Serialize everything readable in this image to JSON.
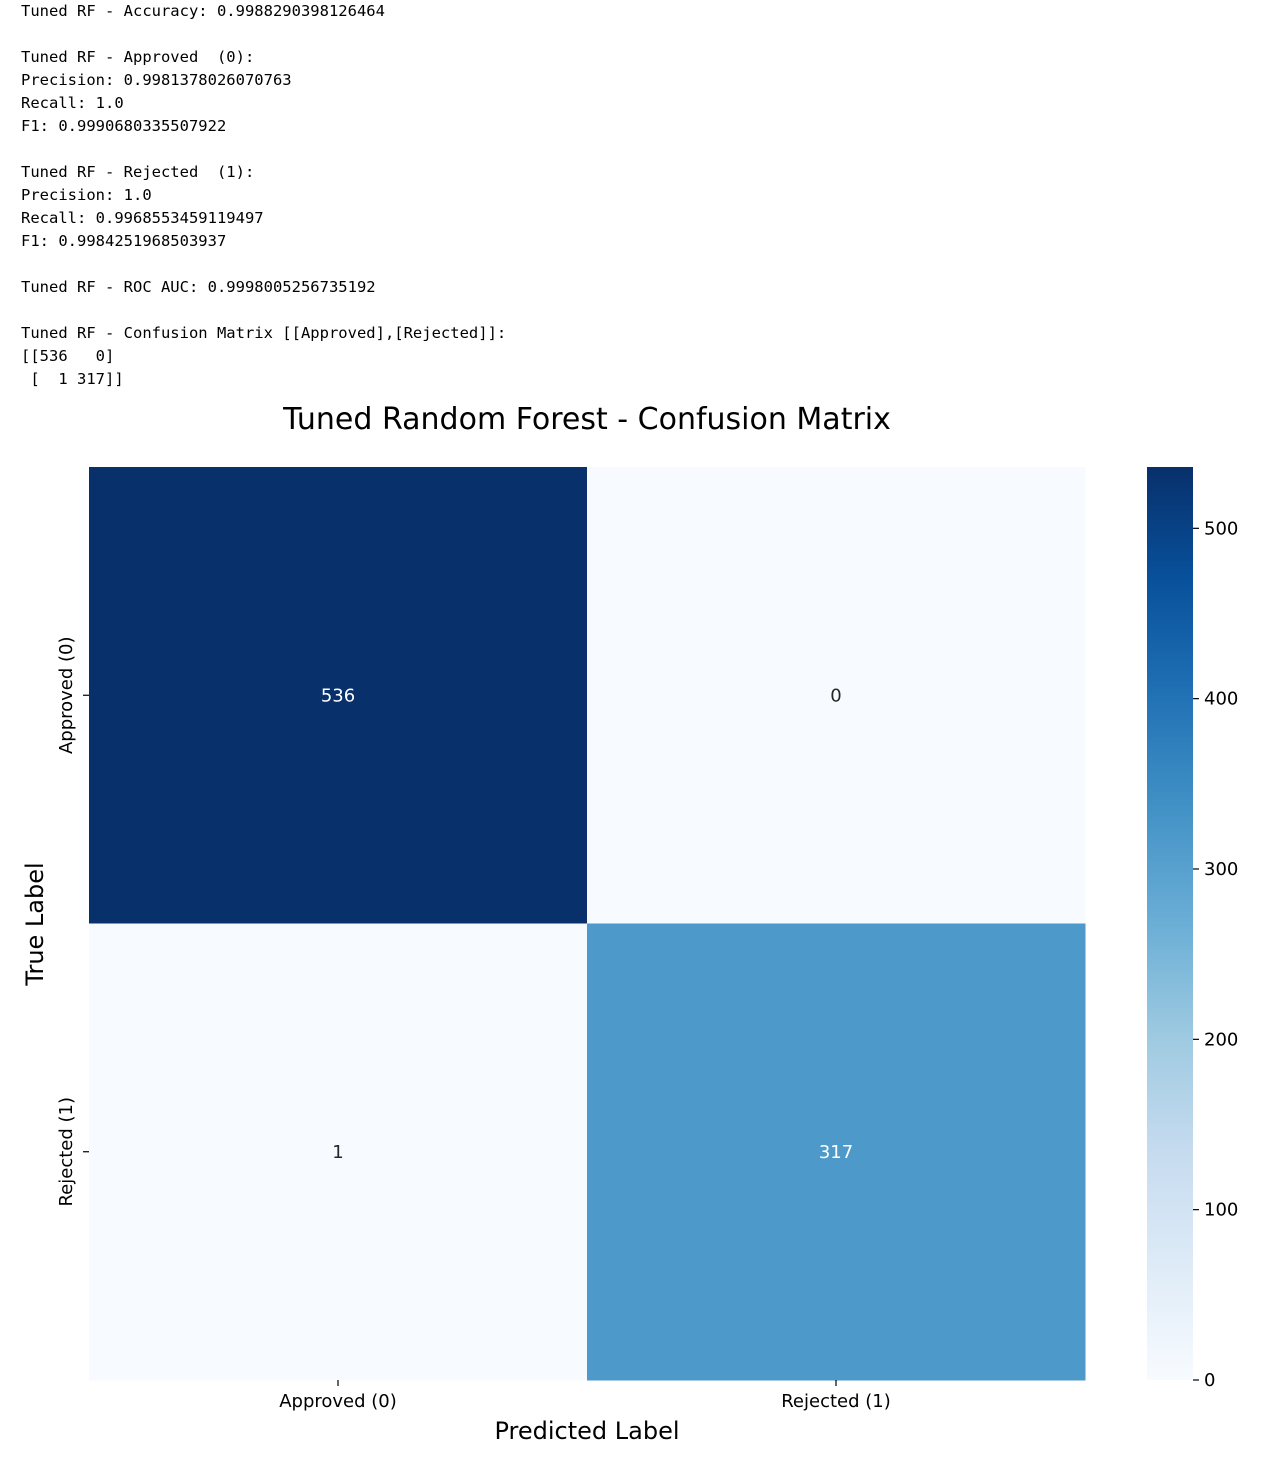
{
  "console": {
    "lines": [
      "Tuned RF - Accuracy: 0.9988290398126464",
      "",
      "Tuned RF - Approved  (0):",
      "Precision: 0.9981378026070763",
      "Recall: 1.0",
      "F1: 0.9990680335507922",
      "",
      "Tuned RF - Rejected  (1):",
      "Precision: 1.0",
      "Recall: 0.9968553459119497",
      "F1: 0.9984251968503937",
      "",
      "Tuned RF - ROC AUC: 0.9998005256735192",
      "",
      "Tuned RF - Confusion Matrix [[Approved],[Rejected]]:",
      "[[536   0]",
      " [  1 317]]"
    ]
  },
  "chart_data": {
    "type": "heatmap",
    "title": "Tuned Random Forest - Confusion Matrix",
    "xlabel": "Predicted Label",
    "ylabel": "True Label",
    "x_categories": [
      "Approved (0)",
      "Rejected (1)"
    ],
    "y_categories": [
      "Approved (0)",
      "Rejected (1)"
    ],
    "matrix": [
      [
        536,
        0
      ],
      [
        1,
        317
      ]
    ],
    "colormap": "Blues",
    "colorbar": {
      "min": 0,
      "max": 536,
      "ticks": [
        0,
        100,
        200,
        300,
        400,
        500
      ]
    }
  }
}
